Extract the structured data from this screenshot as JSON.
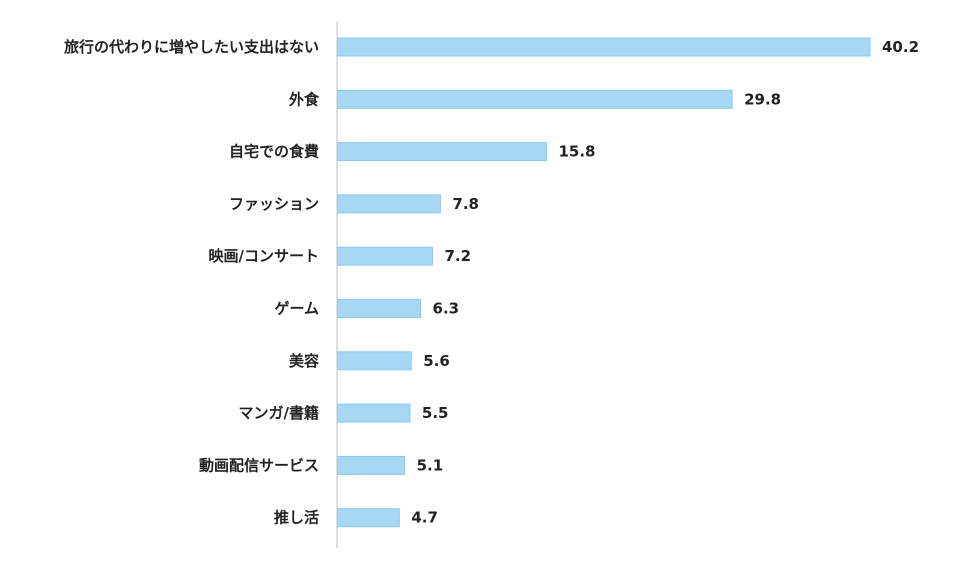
{
  "chart_data": {
    "type": "bar",
    "orientation": "horizontal",
    "title": "",
    "xlabel": "",
    "ylabel": "",
    "xlim": [
      0,
      40.2
    ],
    "grid": false,
    "legend": "none",
    "categories": [
      "旅行の代わりに増やしたい支出はない",
      "外食",
      "自宅での食費",
      "ファッション",
      "映画/コンサート",
      "ゲーム",
      "美容",
      "マンガ/書籍",
      "動画配信サービス",
      "推し活"
    ],
    "values": [
      40.2,
      29.8,
      15.8,
      7.8,
      7.2,
      6.3,
      5.6,
      5.5,
      5.1,
      4.7
    ],
    "value_labels": [
      "40.2",
      "29.8",
      "15.8",
      "7.8",
      "7.2",
      "6.3",
      "5.6",
      "5.5",
      "5.1",
      "4.7"
    ],
    "colors": {
      "bar_fill": "#a6d8f3",
      "bar_stroke": "#8ccaed",
      "axis": "#bfbfbf",
      "text": "#222222"
    }
  }
}
